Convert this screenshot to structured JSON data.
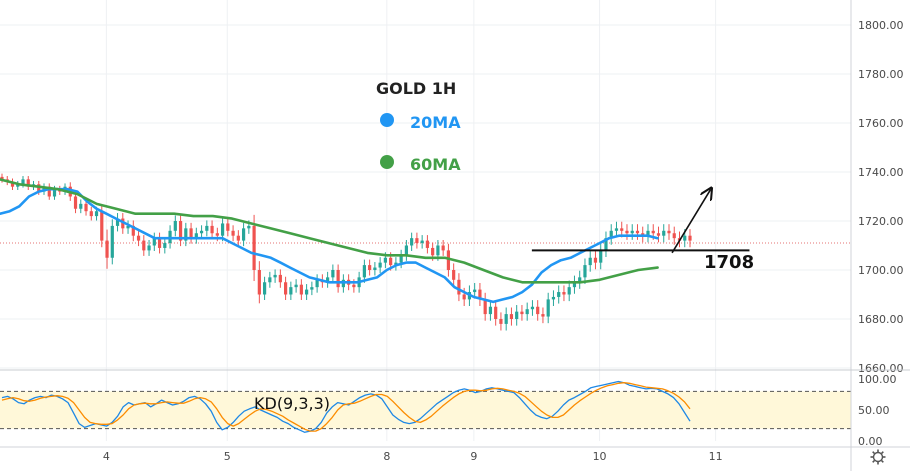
{
  "chart_data": [
    {
      "type": "candlestick",
      "title": "GOLD 1H",
      "xlabel": "",
      "ylabel": "",
      "ylim": [
        1660,
        1810
      ],
      "y_ticks": [
        "1800.00",
        "1780.00",
        "1760.00",
        "1740.00",
        "1720.00",
        "1700.00",
        "1680.00",
        "1660.00"
      ],
      "y_tick_values": [
        1800,
        1780,
        1760,
        1740,
        1720,
        1700,
        1680,
        1660
      ],
      "x_ticks": [
        {
          "label": "4",
          "x": 22
        },
        {
          "label": "5",
          "x": 47
        },
        {
          "label": "8",
          "x": 80
        },
        {
          "label": "9",
          "x": 98
        },
        {
          "label": "10",
          "x": 124
        },
        {
          "label": "11",
          "x": 148
        }
      ],
      "x_range": [
        0,
        176
      ],
      "grid": true,
      "current_price": 1711,
      "legend": [
        {
          "label": "20MA",
          "color": "#2196f3"
        },
        {
          "label": "60MA",
          "color": "#43a047"
        }
      ],
      "candles_close": [
        1737,
        1736,
        1734,
        1735,
        1737,
        1734,
        1735,
        1732,
        1734,
        1730,
        1733,
        1732,
        1734,
        1730,
        1725,
        1727,
        1724,
        1722,
        1724,
        1712,
        1705,
        1718,
        1721,
        1717,
        1718,
        1714,
        1712,
        1708,
        1710,
        1713,
        1709,
        1711,
        1716,
        1720,
        1712,
        1717,
        1713,
        1715,
        1716,
        1718,
        1715,
        1714,
        1719,
        1716,
        1714,
        1712,
        1717,
        1718,
        1700,
        1690,
        1695,
        1697,
        1698,
        1695,
        1690,
        1693,
        1694,
        1690,
        1692,
        1693,
        1696,
        1695,
        1697,
        1700,
        1693,
        1696,
        1694,
        1693,
        1697,
        1702,
        1700,
        1701,
        1703,
        1705,
        1702,
        1703,
        1706,
        1710,
        1713,
        1711,
        1712,
        1709,
        1706,
        1710,
        1708,
        1700,
        1696,
        1690,
        1688,
        1691,
        1692,
        1688,
        1682,
        1685,
        1680,
        1678,
        1682,
        1680,
        1683,
        1682,
        1684,
        1685,
        1682,
        1681,
        1688,
        1689,
        1691,
        1690,
        1693,
        1695,
        1697,
        1702,
        1705,
        1703,
        1708,
        1713,
        1716,
        1717,
        1716,
        1715,
        1716,
        1715,
        1714,
        1716,
        1715,
        1714,
        1716,
        1715,
        1713,
        1712,
        1714,
        1712
      ],
      "candles_range": [
        3,
        3,
        3,
        3,
        3,
        3,
        3,
        3,
        3,
        3,
        3,
        3,
        3,
        4,
        4,
        4,
        4,
        4,
        4,
        6,
        10,
        6,
        5,
        5,
        5,
        5,
        5,
        5,
        5,
        5,
        5,
        5,
        5,
        5,
        5,
        5,
        5,
        5,
        5,
        5,
        5,
        5,
        5,
        5,
        5,
        5,
        5,
        5,
        10,
        8,
        5,
        5,
        5,
        5,
        5,
        5,
        5,
        5,
        5,
        5,
        5,
        5,
        5,
        5,
        5,
        5,
        5,
        5,
        5,
        5,
        5,
        5,
        5,
        5,
        5,
        5,
        5,
        5,
        5,
        5,
        5,
        5,
        5,
        5,
        5,
        6,
        6,
        6,
        6,
        6,
        6,
        6,
        6,
        6,
        6,
        6,
        6,
        6,
        6,
        6,
        6,
        6,
        6,
        6,
        6,
        6,
        6,
        6,
        6,
        6,
        6,
        6,
        6,
        6,
        6,
        6,
        6,
        6,
        6,
        6,
        6,
        6,
        6,
        6,
        6,
        6,
        6,
        6,
        6,
        6,
        6,
        6
      ],
      "series": [
        {
          "name": "20MA",
          "color": "#2196f3",
          "points": [
            [
              0,
              1723
            ],
            [
              2,
              1724
            ],
            [
              4,
              1726
            ],
            [
              6,
              1730
            ],
            [
              8,
              1732
            ],
            [
              10,
              1733
            ],
            [
              12,
              1733
            ],
            [
              14,
              1733
            ],
            [
              16,
              1732
            ],
            [
              18,
              1728
            ],
            [
              20,
              1725
            ],
            [
              22,
              1723
            ],
            [
              24,
              1721
            ],
            [
              26,
              1719
            ],
            [
              28,
              1717
            ],
            [
              30,
              1715
            ],
            [
              32,
              1713
            ],
            [
              34,
              1713
            ],
            [
              36,
              1713
            ],
            [
              38,
              1713
            ],
            [
              40,
              1713
            ],
            [
              42,
              1713
            ],
            [
              44,
              1713
            ],
            [
              46,
              1713
            ],
            [
              48,
              1711
            ],
            [
              50,
              1709
            ],
            [
              52,
              1707
            ],
            [
              54,
              1706
            ],
            [
              56,
              1705
            ],
            [
              58,
              1703
            ],
            [
              60,
              1701
            ],
            [
              62,
              1699
            ],
            [
              64,
              1697
            ],
            [
              66,
              1696
            ],
            [
              68,
              1695
            ],
            [
              70,
              1695
            ],
            [
              72,
              1695
            ],
            [
              74,
              1695
            ],
            [
              76,
              1696
            ],
            [
              78,
              1697
            ],
            [
              80,
              1700
            ],
            [
              82,
              1702
            ],
            [
              84,
              1703
            ],
            [
              86,
              1703
            ],
            [
              88,
              1701
            ],
            [
              90,
              1699
            ],
            [
              92,
              1697
            ],
            [
              94,
              1693
            ],
            [
              96,
              1691
            ],
            [
              98,
              1689
            ],
            [
              100,
              1688
            ],
            [
              102,
              1687
            ],
            [
              104,
              1688
            ],
            [
              106,
              1689
            ],
            [
              108,
              1691
            ],
            [
              110,
              1694
            ],
            [
              112,
              1699
            ],
            [
              114,
              1702
            ],
            [
              116,
              1704
            ],
            [
              118,
              1705
            ],
            [
              120,
              1707
            ],
            [
              122,
              1709
            ],
            [
              124,
              1711
            ],
            [
              126,
              1713
            ],
            [
              128,
              1714
            ],
            [
              130,
              1714
            ],
            [
              132,
              1714
            ],
            [
              134,
              1714
            ],
            [
              136,
              1713
            ]
          ]
        },
        {
          "name": "60MA",
          "color": "#43a047",
          "points": [
            [
              0,
              1737
            ],
            [
              4,
              1735
            ],
            [
              8,
              1734
            ],
            [
              12,
              1733
            ],
            [
              16,
              1731
            ],
            [
              20,
              1727
            ],
            [
              24,
              1725
            ],
            [
              28,
              1723
            ],
            [
              32,
              1723
            ],
            [
              36,
              1723
            ],
            [
              40,
              1722
            ],
            [
              44,
              1722
            ],
            [
              48,
              1721
            ],
            [
              52,
              1719
            ],
            [
              56,
              1717
            ],
            [
              60,
              1715
            ],
            [
              64,
              1713
            ],
            [
              68,
              1711
            ],
            [
              72,
              1709
            ],
            [
              76,
              1707
            ],
            [
              80,
              1706
            ],
            [
              84,
              1706
            ],
            [
              88,
              1705
            ],
            [
              92,
              1705
            ],
            [
              96,
              1703
            ],
            [
              100,
              1700
            ],
            [
              104,
              1697
            ],
            [
              108,
              1695
            ],
            [
              112,
              1695
            ],
            [
              116,
              1695
            ],
            [
              120,
              1695
            ],
            [
              124,
              1696
            ],
            [
              128,
              1698
            ],
            [
              132,
              1700
            ],
            [
              136,
              1701
            ]
          ]
        }
      ],
      "annotations": {
        "support_level": 1708,
        "support_label": "1708",
        "support_x_range": [
          110,
          155
        ],
        "arrow_from": [
          139,
          1707
        ],
        "arrow_to": [
          147,
          1733
        ]
      }
    },
    {
      "type": "line",
      "title": "KD(9,3,3)",
      "ylim": [
        0,
        100
      ],
      "y_ticks": [
        "100.00",
        "50.00",
        "0.00"
      ],
      "y_tick_values": [
        100,
        50,
        0
      ],
      "band": [
        20,
        80
      ],
      "series": [
        {
          "name": "K",
          "color": "#1e88e5",
          "values": [
            70,
            72,
            68,
            62,
            60,
            66,
            70,
            72,
            70,
            74,
            72,
            68,
            62,
            45,
            28,
            22,
            25,
            28,
            26,
            24,
            30,
            40,
            55,
            62,
            58,
            60,
            62,
            55,
            60,
            66,
            62,
            58,
            60,
            64,
            70,
            72,
            68,
            60,
            48,
            30,
            18,
            22,
            30,
            40,
            48,
            52,
            55,
            50,
            46,
            42,
            38,
            32,
            28,
            22,
            18,
            14,
            16,
            20,
            30,
            45,
            55,
            62,
            60,
            58,
            64,
            70,
            74,
            76,
            74,
            68,
            55,
            42,
            35,
            30,
            28,
            30,
            36,
            44,
            52,
            60,
            66,
            72,
            78,
            82,
            84,
            82,
            78,
            80,
            84,
            86,
            84,
            82,
            80,
            78,
            70,
            60,
            50,
            42,
            38,
            36,
            40,
            48,
            58,
            66,
            70,
            75,
            80,
            86,
            88,
            90,
            92,
            94,
            96,
            94,
            90,
            88,
            86,
            84,
            85,
            84,
            80,
            76,
            70,
            60,
            46,
            32
          ]
        },
        {
          "name": "D",
          "color": "#fb8c00",
          "values": [
            66,
            68,
            70,
            68,
            65,
            64,
            66,
            69,
            71,
            72,
            73,
            72,
            69,
            62,
            50,
            38,
            30,
            28,
            27,
            27,
            28,
            34,
            42,
            52,
            58,
            60,
            61,
            60,
            60,
            62,
            63,
            62,
            61,
            61,
            64,
            68,
            70,
            68,
            63,
            52,
            38,
            28,
            24,
            28,
            35,
            42,
            48,
            52,
            51,
            48,
            44,
            40,
            34,
            29,
            24,
            19,
            16,
            16,
            20,
            28,
            38,
            50,
            58,
            60,
            61,
            64,
            68,
            72,
            75,
            75,
            72,
            64,
            55,
            46,
            38,
            32,
            30,
            34,
            40,
            48,
            56,
            63,
            70,
            76,
            80,
            82,
            82,
            81,
            82,
            84,
            85,
            84,
            82,
            80,
            77,
            72,
            64,
            56,
            48,
            42,
            38,
            38,
            42,
            50,
            58,
            65,
            71,
            77,
            82,
            86,
            89,
            91,
            93,
            94,
            93,
            91,
            89,
            87,
            86,
            85,
            84,
            81,
            77,
            71,
            63,
            52
          ]
        }
      ]
    }
  ]
}
